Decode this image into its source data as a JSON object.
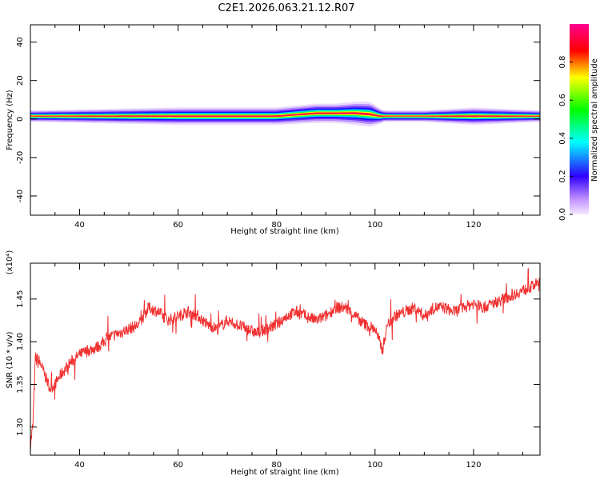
{
  "title": "C2E1.2026.063.21.12.R07",
  "chart_data": [
    {
      "type": "heatmap",
      "title": "C2E1.2026.063.21.12.R07",
      "xlabel": "Height of straight line (km)",
      "ylabel": "Frequency (Hz)",
      "xlim": [
        30,
        133.5
      ],
      "ylim": [
        -50,
        49
      ],
      "xticks": [
        "40",
        "60",
        "80",
        "100",
        "120"
      ],
      "xtick_values": [
        40,
        60,
        80,
        100,
        120
      ],
      "yticks": [
        "40",
        "20",
        "0",
        "-20",
        "-40"
      ],
      "ytick_values": [
        40,
        20,
        0,
        -20,
        -40
      ],
      "colorbar": {
        "label": "Normalized spectral amplitude",
        "range": [
          0,
          1
        ],
        "ticks": [
          "0.0",
          "0.2",
          "0.4",
          "0.6",
          "0.8"
        ],
        "tick_values": [
          0.0,
          0.2,
          0.4,
          0.6,
          0.8
        ],
        "colormap": [
          "#f0e0ff",
          "#b070ff",
          "#0000ff",
          "#00ffff",
          "#00ff00",
          "#ffff00",
          "#ff0000",
          "#ff0080"
        ]
      },
      "ridge": {
        "x": [
          30,
          40,
          50,
          60,
          70,
          80,
          88,
          92,
          96,
          99,
          101,
          102,
          110,
          120,
          133.5
        ],
        "frequency": [
          1.5,
          1.5,
          1.5,
          1.5,
          1.5,
          1.5,
          3,
          3,
          3,
          2.5,
          1.5,
          1.5,
          1.5,
          1.5,
          1.5
        ],
        "halfwidth": [
          3,
          3.5,
          4,
          4.5,
          4.5,
          4.5,
          5,
          5,
          6,
          6.5,
          4,
          3,
          3,
          4.5,
          3
        ]
      }
    },
    {
      "type": "line",
      "xlabel": "Height of straight line (km)",
      "ylabel": "SNR (10 * v/v)",
      "yscale_label": "(x10⁴)",
      "xlim": [
        30,
        133.5
      ],
      "ylim": [
        1.267,
        1.492
      ],
      "xticks": [
        "40",
        "60",
        "80",
        "100",
        "120"
      ],
      "xtick_values": [
        40,
        60,
        80,
        100,
        120
      ],
      "yticks": [
        "1.30",
        "1.35",
        "1.40",
        "1.45"
      ],
      "ytick_values": [
        1.3,
        1.35,
        1.4,
        1.45
      ],
      "series": [
        {
          "color": "#f03030",
          "x": [
            30,
            30.5,
            31,
            32,
            33,
            34,
            35,
            36,
            38,
            40,
            42,
            44,
            46,
            48,
            50,
            52,
            54,
            56,
            58,
            60,
            62,
            64,
            66,
            68,
            70,
            72,
            74,
            76,
            78,
            80,
            82,
            84,
            86,
            88,
            90,
            92,
            94,
            96,
            98,
            100,
            101.5,
            102.5,
            104,
            106,
            108,
            110,
            112,
            114,
            116,
            118,
            120,
            122,
            124,
            126,
            128,
            130,
            132,
            133.5
          ],
          "y": [
            1.28,
            1.3,
            1.38,
            1.375,
            1.36,
            1.345,
            1.35,
            1.36,
            1.375,
            1.385,
            1.39,
            1.395,
            1.405,
            1.41,
            1.415,
            1.42,
            1.44,
            1.435,
            1.425,
            1.43,
            1.435,
            1.43,
            1.42,
            1.415,
            1.425,
            1.42,
            1.415,
            1.41,
            1.415,
            1.42,
            1.43,
            1.435,
            1.43,
            1.425,
            1.43,
            1.44,
            1.44,
            1.43,
            1.42,
            1.415,
            1.39,
            1.42,
            1.43,
            1.435,
            1.44,
            1.43,
            1.44,
            1.44,
            1.435,
            1.44,
            1.445,
            1.44,
            1.445,
            1.45,
            1.455,
            1.46,
            1.465,
            1.47
          ]
        }
      ]
    }
  ]
}
